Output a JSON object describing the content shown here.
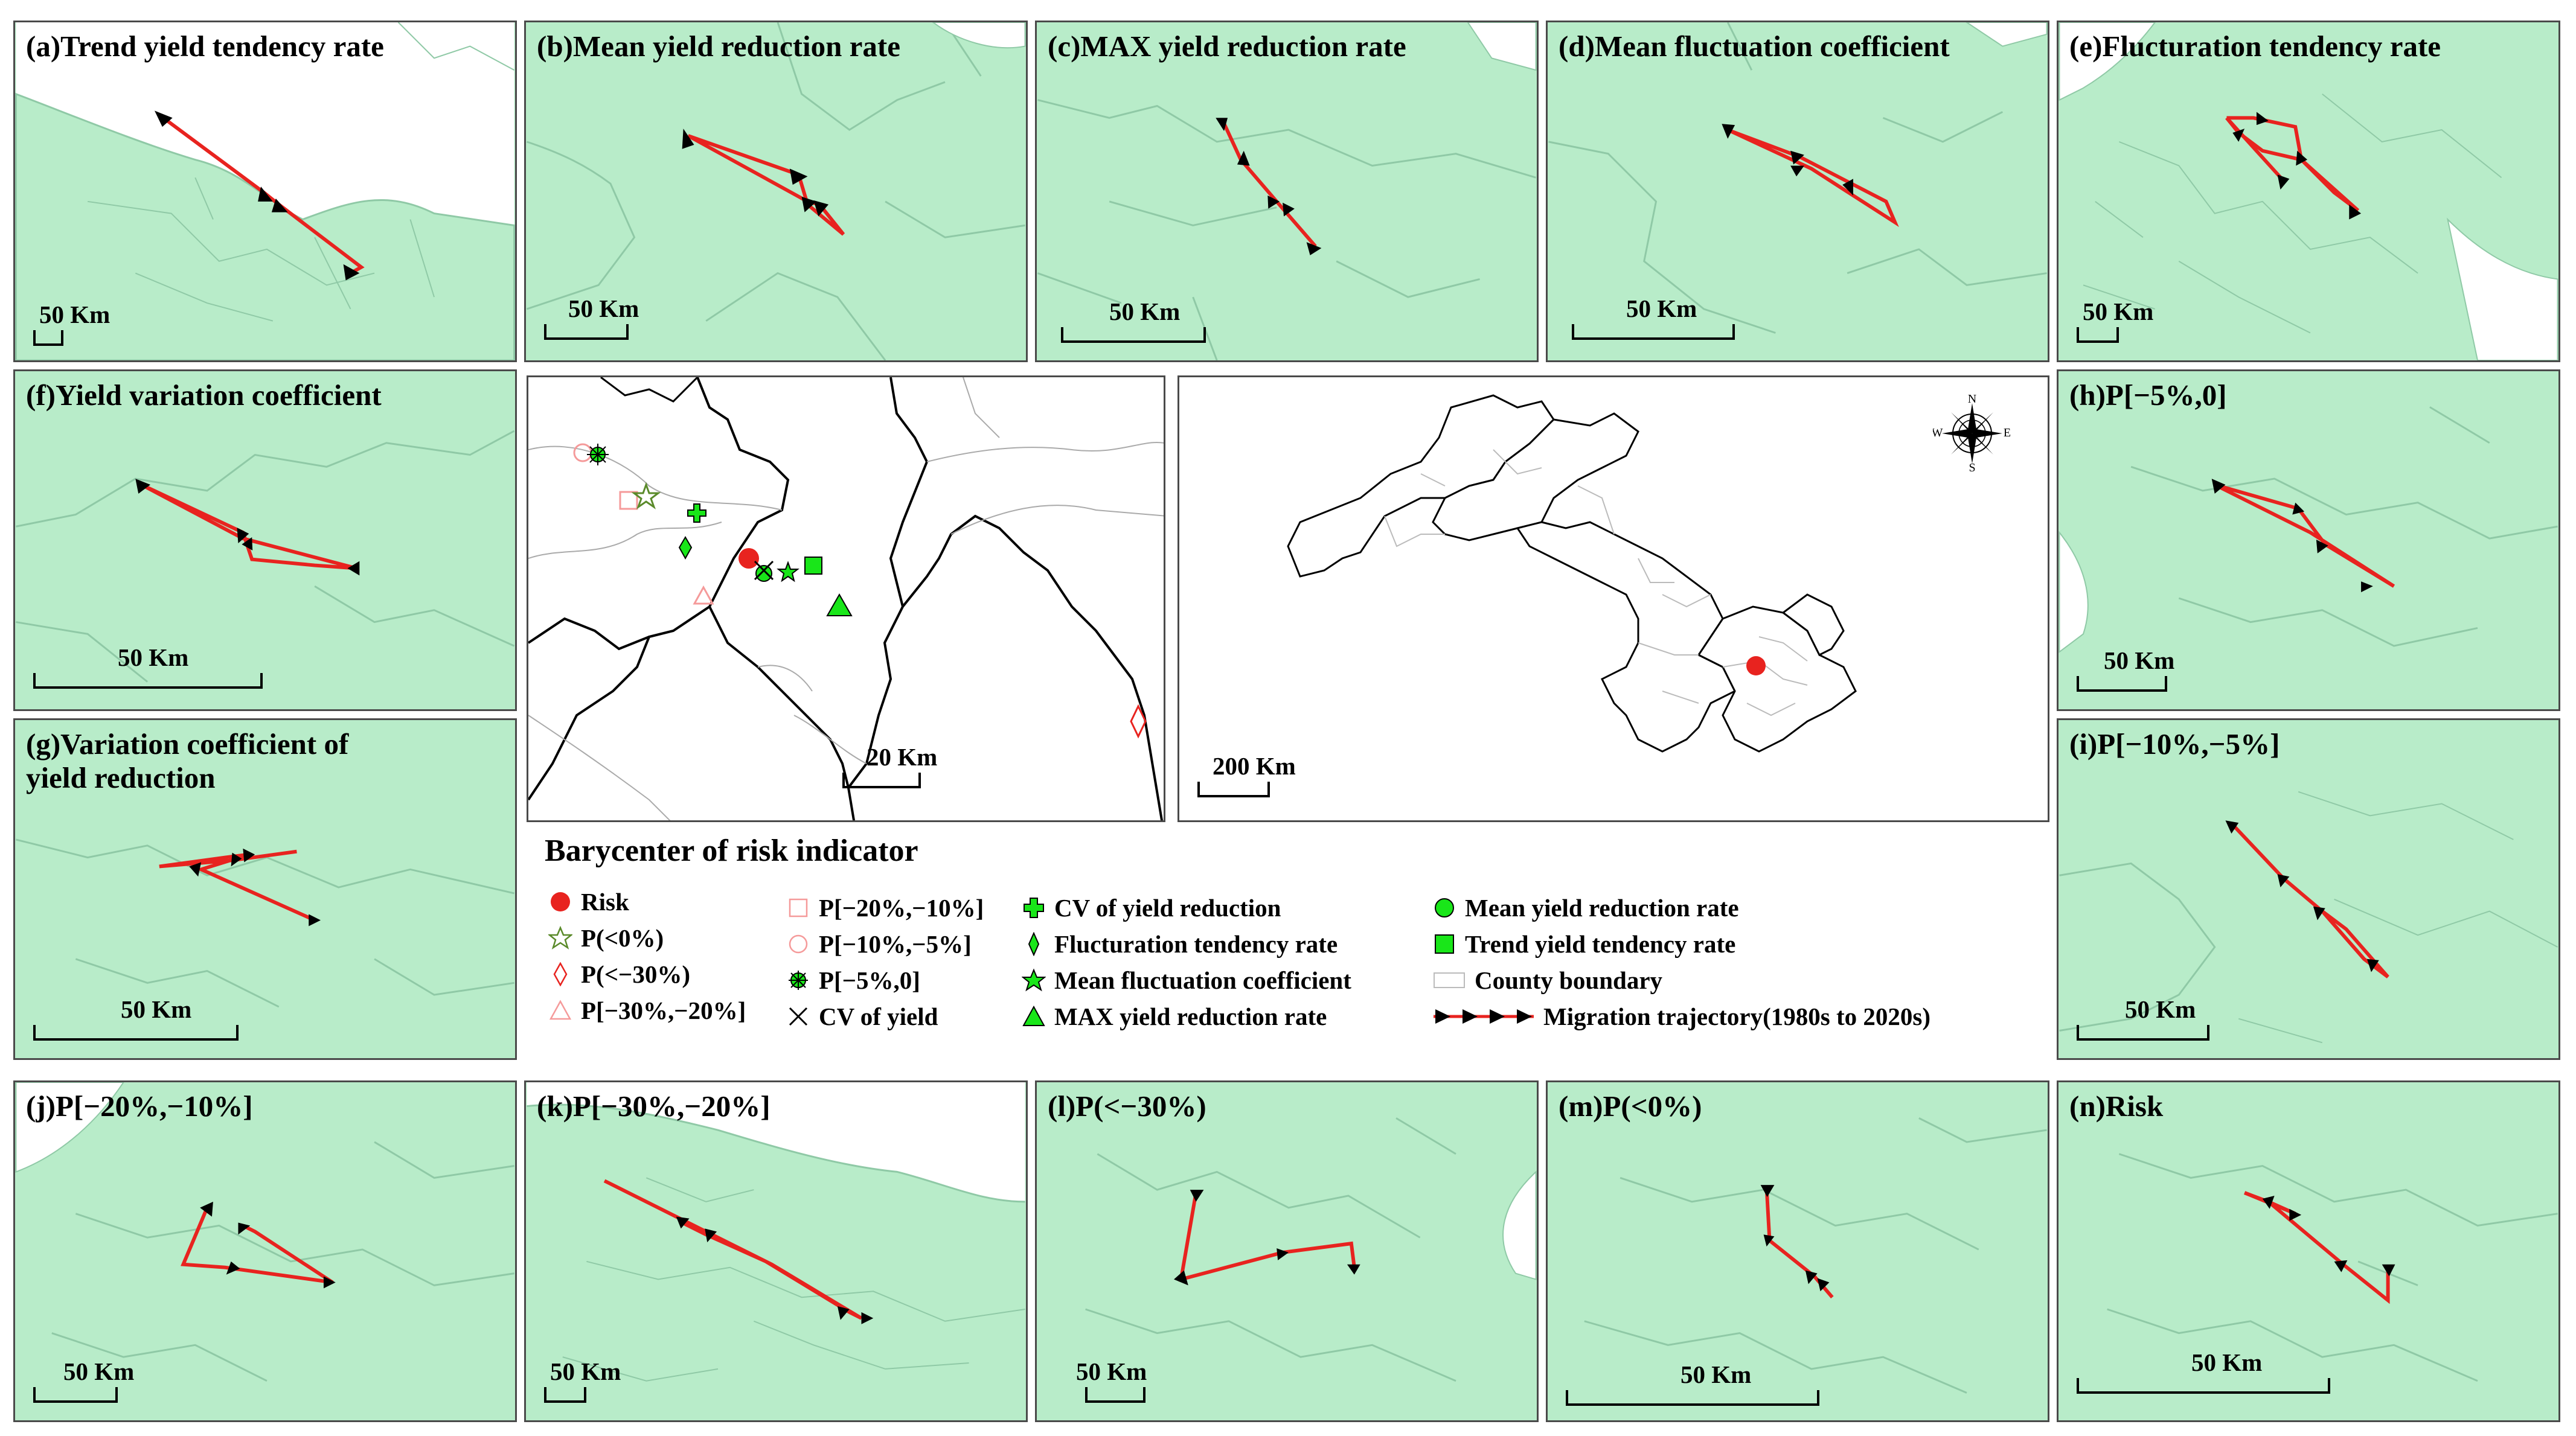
{
  "colors": {
    "land": "#b8ecc9",
    "land_stroke": "#8fc9a6",
    "trajectory": "#e8231f",
    "arrow": "#000000",
    "water": "#ffffff",
    "risk_red": "#e8231f",
    "green": "#19e619"
  },
  "panels": [
    {
      "id": "a",
      "title": "(a)Trend yield tendency rate",
      "scale": "50 Km"
    },
    {
      "id": "b",
      "title": "(b)Mean yield reduction rate",
      "scale": "50 Km"
    },
    {
      "id": "c",
      "title": "(c)MAX yield reduction rate",
      "scale": "50 Km"
    },
    {
      "id": "d",
      "title": "(d)Mean fluctuation coefficient",
      "scale": "50 Km"
    },
    {
      "id": "e",
      "title": "(e)Flucturation tendency rate",
      "scale": "50 Km"
    },
    {
      "id": "f",
      "title": "(f)Yield variation coefficient",
      "scale": "50 Km"
    },
    {
      "id": "g",
      "title": "(g)Variation coefficient of\nyield reduction",
      "scale": "50 Km"
    },
    {
      "id": "h",
      "title": "(h)P[−5%,0]",
      "scale": "50 Km"
    },
    {
      "id": "i",
      "title": "(i)P[−10%,−5%]",
      "scale": "50 Km"
    },
    {
      "id": "j",
      "title": "(j)P[−20%,−10%]",
      "scale": "50 Km"
    },
    {
      "id": "k",
      "title": "(k)P[−30%,−20%]",
      "scale": "50 Km"
    },
    {
      "id": "l",
      "title": "(l)P(<−30%)",
      "scale": "50 Km"
    },
    {
      "id": "m",
      "title": "(m)P(<0%)",
      "scale": "50 Km"
    },
    {
      "id": "n",
      "title": "(n)Risk",
      "scale": "50 Km"
    }
  ],
  "detail_map": {
    "scale": "20 Km"
  },
  "overview_map": {
    "scale": "200 Km",
    "compass": {
      "n": "N",
      "s": "S",
      "e": "E",
      "w": "W"
    }
  },
  "legend": {
    "title": "Barycenter of risk indicator",
    "items": [
      "Risk",
      "P(<0%)",
      "P(<−30%)",
      "P[−30%,−20%]",
      "P[−20%,−10%]",
      "P[−10%,−5%]",
      "P[−5%,0]",
      "CV of yield",
      "CV of yield reduction",
      "Flucturation tendency rate",
      "Mean fluctuation coefficient",
      "MAX yield reduction rate",
      "Mean yield reduction rate",
      "Trend yield tendency rate",
      "County boundary",
      "Migration trajectory(1980s to 2020s)"
    ]
  }
}
